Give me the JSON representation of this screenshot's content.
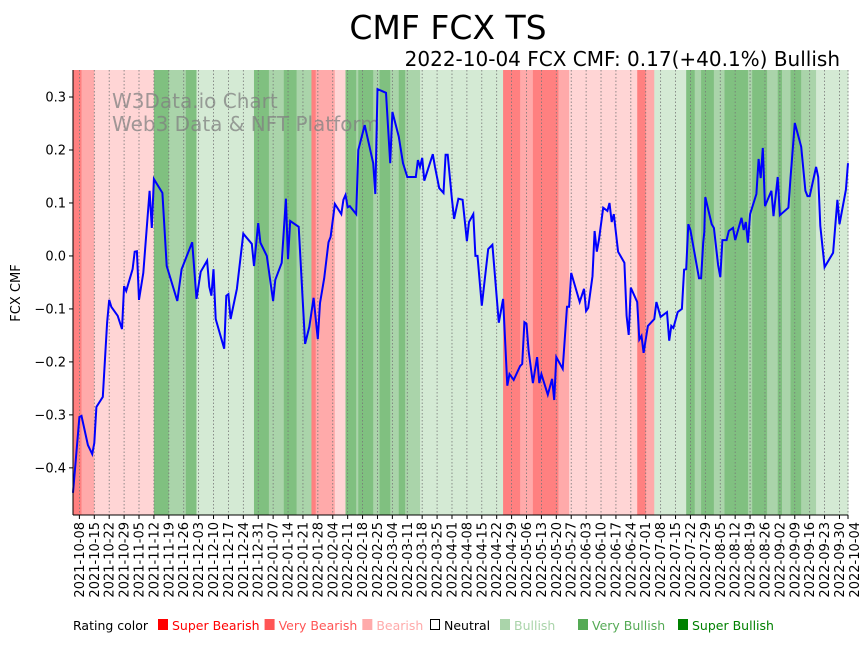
{
  "chart_data": {
    "type": "line",
    "title": "CMF FCX TS",
    "subtitle": "2022-10-04 FCX CMF: 0.17(+40.1%) Bullish",
    "ylabel": "FCX CMF",
    "xlabel": "",
    "watermark": [
      "W3Data.io Chart",
      "Web3 Data & NFT Platform"
    ],
    "x_unit": "days since 2021-10-08",
    "xlim": [
      -3,
      361
    ],
    "ylim": [
      -0.489,
      0.351
    ],
    "yticks": [
      0.3,
      0.2,
      0.1,
      0.0,
      -0.1,
      -0.2,
      -0.3,
      -0.4
    ],
    "ytick_labels": [
      "0.3",
      "0.2",
      "0.1",
      "0.0",
      "−0.1",
      "−0.2",
      "−0.3",
      "−0.4"
    ],
    "xtick_days": [
      0,
      7,
      14,
      21,
      28,
      35,
      42,
      49,
      56,
      63,
      70,
      77,
      84,
      91,
      98,
      105,
      112,
      119,
      126,
      133,
      140,
      147,
      154,
      161,
      168,
      175,
      182,
      189,
      196,
      203,
      210,
      217,
      224,
      231,
      238,
      245,
      252,
      259,
      266,
      273,
      280,
      287,
      294,
      301,
      308,
      315,
      322,
      329,
      336,
      343,
      350,
      357,
      361
    ],
    "xtick_labels": [
      "2021-10-08",
      "2021-10-15",
      "2021-10-22",
      "2021-10-29",
      "2021-11-05",
      "2021-11-12",
      "2021-11-19",
      "2021-11-26",
      "2021-12-03",
      "2021-12-10",
      "2021-12-17",
      "2021-12-24",
      "2021-12-31",
      "2022-01-07",
      "2022-01-14",
      "2022-01-21",
      "2022-01-28",
      "2022-02-04",
      "2022-02-11",
      "2022-02-18",
      "2022-02-25",
      "2022-03-04",
      "2022-03-11",
      "2022-03-18",
      "2022-03-25",
      "2022-04-01",
      "2022-04-08",
      "2022-04-15",
      "2022-04-22",
      "2022-04-29",
      "2022-05-06",
      "2022-05-13",
      "2022-05-20",
      "2022-05-27",
      "2022-06-03",
      "2022-06-10",
      "2022-06-17",
      "2022-06-24",
      "2022-07-01",
      "2022-07-08",
      "2022-07-15",
      "2022-07-22",
      "2022-07-29",
      "2022-08-05",
      "2022-08-12",
      "2022-08-19",
      "2022-08-26",
      "2022-09-02",
      "2022-09-09",
      "2022-09-16",
      "2022-09-23",
      "2022-09-30",
      "2022-10-04"
    ],
    "grid": "vertical dotted at x ticks",
    "series": [
      {
        "name": "FCX CMF",
        "color": "#0000ff",
        "points": [
          [
            -3,
            -0.447
          ],
          [
            0,
            -0.304
          ],
          [
            1,
            -0.302
          ],
          [
            4,
            -0.357
          ],
          [
            6,
            -0.374
          ],
          [
            7,
            -0.353
          ],
          [
            8,
            -0.285
          ],
          [
            11,
            -0.266
          ],
          [
            13,
            -0.126
          ],
          [
            14,
            -0.083
          ],
          [
            15,
            -0.096
          ],
          [
            18,
            -0.113
          ],
          [
            20,
            -0.138
          ],
          [
            21,
            -0.057
          ],
          [
            22,
            -0.066
          ],
          [
            25,
            -0.025
          ],
          [
            26,
            0.008
          ],
          [
            27,
            0.009
          ],
          [
            28,
            -0.083
          ],
          [
            30,
            -0.032
          ],
          [
            33,
            0.123
          ],
          [
            34,
            0.053
          ],
          [
            35,
            0.145
          ],
          [
            39,
            0.119
          ],
          [
            41,
            -0.019
          ],
          [
            43,
            -0.045
          ],
          [
            46,
            -0.085
          ],
          [
            48,
            -0.025
          ],
          [
            53,
            0.026
          ],
          [
            55,
            -0.081
          ],
          [
            57,
            -0.03
          ],
          [
            60,
            -0.009
          ],
          [
            61,
            -0.058
          ],
          [
            62,
            -0.075
          ],
          [
            63,
            -0.025
          ],
          [
            64,
            -0.119
          ],
          [
            68,
            -0.175
          ],
          [
            69,
            -0.075
          ],
          [
            70,
            -0.072
          ],
          [
            71,
            -0.119
          ],
          [
            74,
            -0.062
          ],
          [
            77,
            0.042
          ],
          [
            81,
            0.023
          ],
          [
            82,
            -0.019
          ],
          [
            84,
            0.062
          ],
          [
            85,
            0.025
          ],
          [
            88,
            0.0
          ],
          [
            91,
            -0.085
          ],
          [
            92,
            -0.045
          ],
          [
            95,
            -0.013
          ],
          [
            97,
            0.108
          ],
          [
            98,
            -0.006
          ],
          [
            99,
            0.066
          ],
          [
            103,
            0.055
          ],
          [
            106,
            -0.166
          ],
          [
            108,
            -0.134
          ],
          [
            110,
            -0.079
          ],
          [
            112,
            -0.157
          ],
          [
            113,
            -0.089
          ],
          [
            115,
            -0.042
          ],
          [
            117,
            0.026
          ],
          [
            118,
            0.036
          ],
          [
            120,
            0.098
          ],
          [
            123,
            0.079
          ],
          [
            124,
            0.106
          ],
          [
            125,
            0.115
          ],
          [
            126,
            0.092
          ],
          [
            127,
            0.094
          ],
          [
            130,
            0.079
          ],
          [
            131,
            0.2
          ],
          [
            134,
            0.247
          ],
          [
            138,
            0.175
          ],
          [
            139,
            0.117
          ],
          [
            140,
            0.315
          ],
          [
            144,
            0.308
          ],
          [
            146,
            0.175
          ],
          [
            147,
            0.272
          ],
          [
            150,
            0.225
          ],
          [
            152,
            0.175
          ],
          [
            154,
            0.149
          ],
          [
            158,
            0.149
          ],
          [
            159,
            0.181
          ],
          [
            160,
            0.168
          ],
          [
            161,
            0.185
          ],
          [
            162,
            0.142
          ],
          [
            166,
            0.192
          ],
          [
            167,
            0.168
          ],
          [
            169,
            0.128
          ],
          [
            171,
            0.119
          ],
          [
            172,
            0.191
          ],
          [
            173,
            0.191
          ],
          [
            175,
            0.106
          ],
          [
            176,
            0.07
          ],
          [
            178,
            0.108
          ],
          [
            180,
            0.106
          ],
          [
            182,
            0.028
          ],
          [
            183,
            0.064
          ],
          [
            185,
            0.079
          ],
          [
            186,
            0.0
          ],
          [
            187,
            0.0
          ],
          [
            189,
            -0.094
          ],
          [
            192,
            0.013
          ],
          [
            194,
            0.021
          ],
          [
            197,
            -0.126
          ],
          [
            199,
            -0.081
          ],
          [
            201,
            -0.245
          ],
          [
            202,
            -0.223
          ],
          [
            204,
            -0.234
          ],
          [
            207,
            -0.208
          ],
          [
            208,
            -0.204
          ],
          [
            209,
            -0.125
          ],
          [
            210,
            -0.128
          ],
          [
            211,
            -0.179
          ],
          [
            213,
            -0.24
          ],
          [
            215,
            -0.191
          ],
          [
            216,
            -0.24
          ],
          [
            217,
            -0.223
          ],
          [
            220,
            -0.262
          ],
          [
            222,
            -0.232
          ],
          [
            223,
            -0.272
          ],
          [
            224,
            -0.191
          ],
          [
            227,
            -0.213
          ],
          [
            229,
            -0.096
          ],
          [
            230,
            -0.096
          ],
          [
            231,
            -0.032
          ],
          [
            235,
            -0.087
          ],
          [
            237,
            -0.062
          ],
          [
            238,
            -0.104
          ],
          [
            239,
            -0.098
          ],
          [
            241,
            -0.038
          ],
          [
            242,
            0.047
          ],
          [
            243,
            0.008
          ],
          [
            244,
            0.03
          ],
          [
            246,
            0.091
          ],
          [
            248,
            0.085
          ],
          [
            249,
            0.1
          ],
          [
            250,
            0.064
          ],
          [
            251,
            0.079
          ],
          [
            253,
            0.008
          ],
          [
            256,
            -0.013
          ],
          [
            257,
            -0.113
          ],
          [
            258,
            -0.149
          ],
          [
            259,
            -0.06
          ],
          [
            262,
            -0.087
          ],
          [
            263,
            -0.158
          ],
          [
            264,
            -0.151
          ],
          [
            265,
            -0.183
          ],
          [
            267,
            -0.132
          ],
          [
            270,
            -0.119
          ],
          [
            271,
            -0.087
          ],
          [
            273,
            -0.115
          ],
          [
            276,
            -0.106
          ],
          [
            277,
            -0.16
          ],
          [
            278,
            -0.132
          ],
          [
            279,
            -0.136
          ],
          [
            281,
            -0.106
          ],
          [
            283,
            -0.1
          ],
          [
            284,
            -0.026
          ],
          [
            285,
            -0.025
          ],
          [
            286,
            0.06
          ],
          [
            287,
            0.049
          ],
          [
            291,
            -0.042
          ],
          [
            292,
            -0.042
          ],
          [
            293,
            0.025
          ],
          [
            293.5,
            0.045
          ],
          [
            294,
            0.111
          ],
          [
            297,
            0.06
          ],
          [
            298,
            0.053
          ],
          [
            300,
            -0.017
          ],
          [
            301,
            -0.04
          ],
          [
            302,
            0.03
          ],
          [
            304,
            0.03
          ],
          [
            305,
            0.047
          ],
          [
            307,
            0.053
          ],
          [
            308,
            0.03
          ],
          [
            311,
            0.072
          ],
          [
            312,
            0.049
          ],
          [
            313,
            0.064
          ],
          [
            314,
            0.025
          ],
          [
            315,
            0.079
          ],
          [
            318,
            0.117
          ],
          [
            319,
            0.183
          ],
          [
            320,
            0.147
          ],
          [
            321,
            0.204
          ],
          [
            322,
            0.094
          ],
          [
            325,
            0.123
          ],
          [
            326,
            0.075
          ],
          [
            328,
            0.149
          ],
          [
            329,
            0.077
          ],
          [
            333,
            0.091
          ],
          [
            334,
            0.147
          ],
          [
            336,
            0.251
          ],
          [
            339,
            0.206
          ],
          [
            341,
            0.123
          ],
          [
            342,
            0.113
          ],
          [
            343,
            0.113
          ],
          [
            346,
            0.168
          ],
          [
            347,
            0.149
          ],
          [
            348,
            0.057
          ],
          [
            350,
            -0.021
          ],
          [
            354,
            0.006
          ],
          [
            355,
            0.055
          ],
          [
            356,
            0.106
          ],
          [
            357,
            0.06
          ],
          [
            360,
            0.125
          ],
          [
            361,
            0.175
          ]
        ]
      }
    ],
    "rating_bands": [
      [
        -3,
        1,
        "sb"
      ],
      [
        1,
        7,
        "vb"
      ],
      [
        7,
        35,
        "b"
      ],
      [
        35,
        42,
        "sbu"
      ],
      [
        42,
        50,
        "vbu"
      ],
      [
        50,
        55,
        "sbu"
      ],
      [
        55,
        82,
        "bu"
      ],
      [
        82,
        89,
        "sbu"
      ],
      [
        89,
        96,
        "vbu"
      ],
      [
        96,
        102,
        "sbu"
      ],
      [
        102,
        109,
        "vbu"
      ],
      [
        109,
        111,
        "sb"
      ],
      [
        111,
        120,
        "vb"
      ],
      [
        120,
        125,
        "b"
      ],
      [
        125,
        130,
        "sbu"
      ],
      [
        130,
        131,
        "vbu"
      ],
      [
        131,
        138,
        "sbu"
      ],
      [
        138,
        141,
        "vbu"
      ],
      [
        141,
        146,
        "sbu"
      ],
      [
        146,
        150,
        "vbu"
      ],
      [
        150,
        153,
        "sbu"
      ],
      [
        153,
        160,
        "vbu"
      ],
      [
        160,
        199,
        "bu"
      ],
      [
        199,
        207,
        "sb"
      ],
      [
        207,
        213,
        "vb"
      ],
      [
        213,
        225,
        "sb"
      ],
      [
        225,
        230,
        "vb"
      ],
      [
        230,
        262,
        "b"
      ],
      [
        262,
        266,
        "sb"
      ],
      [
        266,
        270,
        "vb"
      ],
      [
        270,
        285,
        "bu"
      ],
      [
        285,
        289,
        "sbu"
      ],
      [
        289,
        292,
        "vbu"
      ],
      [
        292,
        298,
        "sbu"
      ],
      [
        298,
        303,
        "vbu"
      ],
      [
        303,
        314,
        "sbu"
      ],
      [
        314,
        316,
        "vbu"
      ],
      [
        316,
        323,
        "sbu"
      ],
      [
        323,
        328,
        "vbu"
      ],
      [
        328,
        330,
        "sbu"
      ],
      [
        330,
        334,
        "vbu"
      ],
      [
        334,
        339,
        "sbu"
      ],
      [
        339,
        346,
        "vbu"
      ],
      [
        346,
        361,
        "bu"
      ]
    ],
    "band_colors": {
      "sb": "#ff8080",
      "vb": "#ffaaaa",
      "b": "#ffd5d5",
      "n": "#ffffff",
      "bu": "#d4ead4",
      "vbu": "#aad4aa",
      "sbu": "#80c080"
    },
    "legend": {
      "title": "Rating color",
      "items": [
        {
          "key": "sb",
          "label": "Super Bearish",
          "color": "#ff0000"
        },
        {
          "key": "vb",
          "label": "Very Bearish",
          "color": "#ff5555"
        },
        {
          "key": "b",
          "label": "Bearish",
          "color": "#ffaaaa"
        },
        {
          "key": "n",
          "label": "Neutral",
          "color": "#000000"
        },
        {
          "key": "bu",
          "label": "Bullish",
          "color": "#aad4aa"
        },
        {
          "key": "vbu",
          "label": "Very Bullish",
          "color": "#55aa55"
        },
        {
          "key": "sbu",
          "label": "Super Bullish",
          "color": "#008000"
        }
      ]
    }
  }
}
